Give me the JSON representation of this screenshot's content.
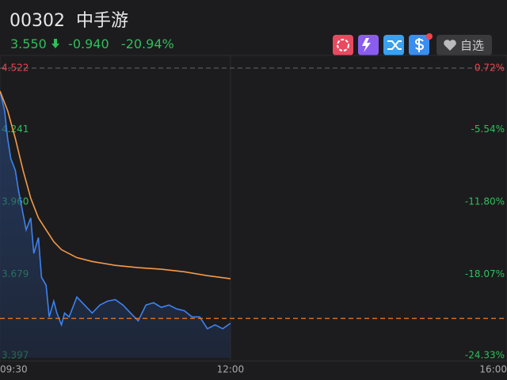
{
  "header": {
    "code": "00302",
    "name": "中手游",
    "price": "3.550",
    "change": "-0.940",
    "change_pct": "-20.94%",
    "watch_button": "自选"
  },
  "chart_data": {
    "type": "line",
    "xlim": [
      0,
      330
    ],
    "xticks": [
      {
        "value": 0,
        "label": "09:30"
      },
      {
        "value": 150,
        "label": "12:00"
      },
      {
        "value": 330,
        "label": "16:00"
      }
    ],
    "ylim": [
      3.397,
      4.522
    ],
    "yticks": [
      4.522,
      4.241,
      {
        "value": 3.96,
        "label": "3.960"
      },
      3.679,
      3.397
    ],
    "ytick_colors": [
      "#f0454f",
      "#2fbf5b",
      "#2fbf5b",
      "#2fbf5b",
      "#2fbf5b"
    ],
    "y2lim": [
      -24.33,
      0.72
    ],
    "y2ticks": [
      {
        "value": 0.72,
        "label": "0.72%"
      },
      {
        "value": -5.54,
        "label": "-5.54%"
      },
      {
        "value": -11.8,
        "label": "-11.80%"
      },
      {
        "value": -18.07,
        "label": "-18.07%"
      },
      {
        "value": -24.33,
        "label": "-24.33%"
      }
    ],
    "last_price_line": 3.55,
    "last_price_color": "#f07a1e",
    "series": [
      {
        "color": "#3d82f0",
        "fill": true,
        "x": [
          0,
          3,
          5,
          7,
          10,
          12,
          15,
          17,
          20,
          22,
          25,
          27,
          30,
          32,
          35,
          37,
          40,
          42,
          45,
          50,
          55,
          60,
          65,
          70,
          75,
          80,
          85,
          90,
          95,
          100,
          105,
          110,
          115,
          120,
          125,
          130,
          135,
          140,
          145,
          150
        ],
        "values": [
          4.433,
          4.356,
          4.248,
          4.171,
          4.125,
          4.048,
          3.956,
          3.894,
          3.94,
          3.802,
          3.864,
          3.71,
          3.679,
          3.556,
          3.617,
          3.571,
          3.525,
          3.571,
          3.556,
          3.633,
          3.602,
          3.571,
          3.602,
          3.617,
          3.623,
          3.602,
          3.571,
          3.541,
          3.602,
          3.611,
          3.593,
          3.602,
          3.587,
          3.58,
          3.556,
          3.556,
          3.51,
          3.525,
          3.51,
          3.531
        ]
      },
      {
        "color": "#f59a4a",
        "fill": false,
        "x": [
          0,
          5,
          10,
          15,
          20,
          25,
          30,
          35,
          40,
          50,
          60,
          75,
          90,
          105,
          120,
          135,
          150
        ],
        "values": [
          4.433,
          4.356,
          4.248,
          4.125,
          4.017,
          3.94,
          3.894,
          3.848,
          3.817,
          3.786,
          3.771,
          3.756,
          3.747,
          3.741,
          3.731,
          3.716,
          3.704
        ]
      }
    ]
  }
}
